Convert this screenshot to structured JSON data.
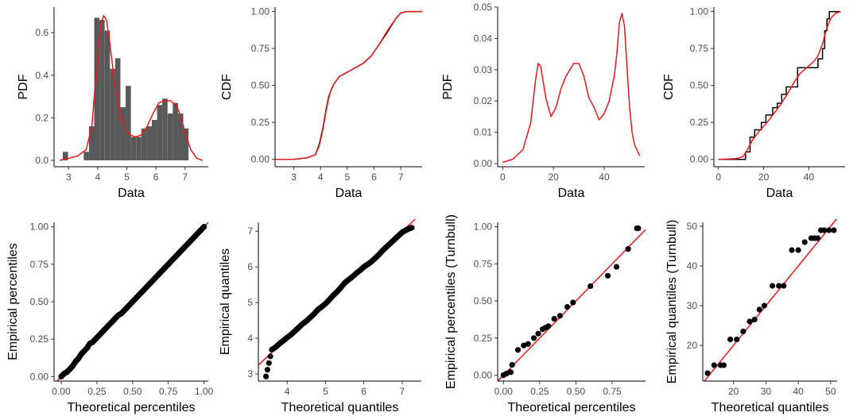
{
  "chart_data": [
    {
      "id": "p1",
      "type": "bar",
      "xlabel": "Data",
      "ylabel": "PDF",
      "xlim": [
        2.5,
        7.8
      ],
      "ylim": [
        -0.03,
        0.72
      ],
      "xticks": [
        3,
        4,
        5,
        6,
        7
      ],
      "xtick_labels": [
        "3",
        "4",
        "5",
        "6",
        "7"
      ],
      "yticks": [
        0,
        0.2,
        0.4,
        0.6
      ],
      "ytick_labels": [
        "0.0",
        "0.2",
        "0.4",
        "0.6"
      ],
      "bars": {
        "bin_edges": [
          2.8,
          2.98,
          3.16,
          3.34,
          3.52,
          3.7,
          3.88,
          4.06,
          4.24,
          4.42,
          4.6,
          4.78,
          4.96,
          5.14,
          5.32,
          5.5,
          5.68,
          5.86,
          6.04,
          6.22,
          6.4,
          6.58,
          6.76,
          6.94,
          7.12
        ],
        "values": [
          0.04,
          0.0,
          0.0,
          0.0,
          0.04,
          0.16,
          0.67,
          0.66,
          0.61,
          0.43,
          0.48,
          0.25,
          0.35,
          0.11,
          0.11,
          0.15,
          0.16,
          0.19,
          0.26,
          0.29,
          0.22,
          0.27,
          0.22,
          0.15
        ],
        "color": "#595959"
      },
      "line": {
        "color": "#e41a1c",
        "x": [
          2.7,
          3.0,
          3.3,
          3.6,
          3.8,
          3.95,
          4.1,
          4.2,
          4.3,
          4.4,
          4.55,
          4.7,
          4.9,
          5.1,
          5.3,
          5.5,
          5.7,
          5.9,
          6.1,
          6.3,
          6.5,
          6.7,
          6.85,
          7.0,
          7.2,
          7.4,
          7.6
        ],
        "y": [
          0.0,
          0.01,
          0.02,
          0.05,
          0.16,
          0.42,
          0.63,
          0.68,
          0.66,
          0.57,
          0.4,
          0.26,
          0.16,
          0.12,
          0.11,
          0.12,
          0.16,
          0.22,
          0.27,
          0.28,
          0.28,
          0.26,
          0.21,
          0.13,
          0.05,
          0.01,
          0.0
        ]
      }
    },
    {
      "id": "p2",
      "type": "line",
      "xlabel": "Data",
      "ylabel": "CDF",
      "xlim": [
        2.3,
        7.8
      ],
      "ylim": [
        -0.05,
        1.03
      ],
      "xticks": [
        3,
        4,
        5,
        6,
        7
      ],
      "xtick_labels": [
        "3",
        "4",
        "5",
        "6",
        "7"
      ],
      "yticks": [
        0,
        0.25,
        0.5,
        0.75,
        1.0
      ],
      "ytick_labels": [
        "0.00",
        "0.25",
        "0.50",
        "0.75",
        "1.00"
      ],
      "series": [
        {
          "color": "#000000",
          "x": [
            2.3,
            3.0,
            3.5,
            3.8,
            3.95,
            4.1,
            4.2,
            4.3,
            4.4,
            4.5,
            4.7,
            4.9,
            5.1,
            5.3,
            5.6,
            5.9,
            6.2,
            6.5,
            6.8,
            7.0,
            7.2,
            7.8
          ],
          "y": [
            0.0,
            0.0,
            0.01,
            0.03,
            0.1,
            0.22,
            0.33,
            0.42,
            0.47,
            0.51,
            0.56,
            0.58,
            0.6,
            0.62,
            0.65,
            0.7,
            0.78,
            0.86,
            0.95,
            0.99,
            1.0,
            1.0
          ]
        },
        {
          "color": "#e41a1c",
          "x": [
            2.3,
            3.0,
            3.5,
            3.8,
            3.95,
            4.1,
            4.2,
            4.3,
            4.4,
            4.5,
            4.7,
            4.9,
            5.1,
            5.3,
            5.6,
            5.9,
            6.2,
            6.5,
            6.8,
            7.0,
            7.2,
            7.8
          ],
          "y": [
            0.0,
            0.0,
            0.01,
            0.03,
            0.09,
            0.21,
            0.32,
            0.41,
            0.47,
            0.51,
            0.56,
            0.58,
            0.6,
            0.62,
            0.65,
            0.7,
            0.78,
            0.87,
            0.95,
            0.99,
            1.0,
            1.0
          ]
        }
      ]
    },
    {
      "id": "p3",
      "type": "line",
      "xlabel": "Data",
      "ylabel": "PDF",
      "xlim": [
        -2,
        56
      ],
      "ylim": [
        -0.001,
        0.05
      ],
      "xticks": [
        0,
        20,
        40
      ],
      "xtick_labels": [
        "0",
        "20",
        "40"
      ],
      "yticks": [
        0,
        0.01,
        0.02,
        0.03,
        0.04,
        0.05
      ],
      "ytick_labels": [
        "0.00",
        "0.01",
        "0.02",
        "0.03",
        "0.04",
        "0.05"
      ],
      "series": [
        {
          "color": "#e41a1c",
          "x": [
            0,
            4,
            8,
            11,
            13,
            14,
            15,
            17,
            19,
            21,
            23,
            25,
            28,
            30,
            32,
            34,
            36,
            38,
            40,
            42,
            44,
            45,
            46,
            47,
            48,
            49,
            50,
            51,
            52,
            54
          ],
          "y": [
            0.0004,
            0.0014,
            0.0045,
            0.013,
            0.027,
            0.032,
            0.031,
            0.021,
            0.015,
            0.018,
            0.024,
            0.028,
            0.032,
            0.032,
            0.028,
            0.021,
            0.018,
            0.014,
            0.016,
            0.02,
            0.028,
            0.035,
            0.045,
            0.048,
            0.044,
            0.031,
            0.018,
            0.01,
            0.006,
            0.0025
          ]
        }
      ]
    },
    {
      "id": "p4",
      "type": "line",
      "xlabel": "Data",
      "ylabel": "CDF",
      "xlim": [
        -2,
        56
      ],
      "ylim": [
        -0.05,
        1.03
      ],
      "xticks": [
        0,
        20,
        40
      ],
      "xtick_labels": [
        "0",
        "20",
        "40"
      ],
      "yticks": [
        0,
        0.25,
        0.5,
        0.75,
        1.0
      ],
      "ytick_labels": [
        "0.00",
        "0.25",
        "0.50",
        "0.75",
        "1.00"
      ],
      "series": [
        {
          "color": "#000000",
          "step": true,
          "x": [
            0,
            12,
            12,
            14,
            14,
            16,
            16,
            19,
            19,
            21,
            21,
            24,
            24,
            26,
            26,
            28,
            28,
            30,
            30,
            35,
            35,
            44,
            44,
            46,
            46,
            47,
            47,
            48,
            48,
            49,
            49,
            54
          ],
          "y": [
            0,
            0,
            0.05,
            0.05,
            0.15,
            0.15,
            0.2,
            0.2,
            0.25,
            0.25,
            0.3,
            0.3,
            0.35,
            0.35,
            0.38,
            0.38,
            0.44,
            0.44,
            0.49,
            0.49,
            0.62,
            0.62,
            0.68,
            0.68,
            0.75,
            0.75,
            0.87,
            0.87,
            0.95,
            0.95,
            1.0,
            1.0
          ]
        },
        {
          "color": "#e41a1c",
          "x": [
            0,
            8,
            11,
            13,
            15,
            18,
            21,
            24,
            27,
            30,
            33,
            36,
            39,
            42,
            44,
            46,
            47,
            48,
            49,
            50,
            52,
            54
          ],
          "y": [
            0.0,
            0.005,
            0.02,
            0.07,
            0.13,
            0.19,
            0.24,
            0.3,
            0.36,
            0.43,
            0.51,
            0.58,
            0.62,
            0.66,
            0.7,
            0.78,
            0.84,
            0.89,
            0.93,
            0.96,
            0.99,
            1.0
          ]
        }
      ]
    },
    {
      "id": "p5",
      "type": "scatter",
      "xlabel": "Theoretical percentiles",
      "ylabel": "Empirical percentiles",
      "xlim": [
        -0.05,
        1.03
      ],
      "ylim": [
        -0.03,
        1.03
      ],
      "xticks": [
        0,
        0.25,
        0.5,
        0.75,
        1.0
      ],
      "xtick_labels": [
        "0.00",
        "0.25",
        "0.50",
        "0.75",
        "1.00"
      ],
      "yticks": [
        0,
        0.25,
        0.5,
        0.75,
        1.0
      ],
      "ytick_labels": [
        "0.00",
        "0.25",
        "0.50",
        "0.75",
        "1.00"
      ],
      "points": {
        "color": "#000000",
        "dense": true,
        "x": [
          0.0,
          0.02,
          0.04,
          0.06,
          0.08,
          0.1,
          0.12,
          0.14,
          0.16,
          0.18,
          0.2,
          0.22,
          0.24,
          0.26,
          0.28,
          0.3,
          0.32,
          0.34,
          0.36,
          0.38,
          0.4,
          0.42,
          0.44,
          0.46,
          0.48,
          0.5,
          0.52,
          0.54,
          0.56,
          0.58,
          0.6,
          0.62,
          0.64,
          0.66,
          0.68,
          0.7,
          0.72,
          0.74,
          0.76,
          0.78,
          0.8,
          0.82,
          0.84,
          0.86,
          0.88,
          0.9,
          0.92,
          0.94,
          0.96,
          0.98,
          1.0
        ],
        "y": [
          0.0,
          0.02,
          0.03,
          0.05,
          0.07,
          0.1,
          0.12,
          0.15,
          0.17,
          0.19,
          0.22,
          0.23,
          0.25,
          0.27,
          0.29,
          0.31,
          0.33,
          0.35,
          0.37,
          0.39,
          0.41,
          0.42,
          0.44,
          0.46,
          0.48,
          0.5,
          0.52,
          0.54,
          0.56,
          0.58,
          0.6,
          0.62,
          0.64,
          0.66,
          0.68,
          0.7,
          0.72,
          0.74,
          0.76,
          0.78,
          0.8,
          0.82,
          0.84,
          0.86,
          0.88,
          0.9,
          0.92,
          0.94,
          0.96,
          0.98,
          1.0
        ]
      },
      "refline": {
        "color": "#e41a1c",
        "x": [
          -0.05,
          1.03
        ],
        "y": [
          -0.05,
          1.03
        ]
      }
    },
    {
      "id": "p6",
      "type": "scatter",
      "xlabel": "Theoretical quantiles",
      "ylabel": "Empirical quantiles",
      "xlim": [
        3.25,
        7.5
      ],
      "ylim": [
        2.8,
        7.25
      ],
      "xticks": [
        4,
        5,
        6,
        7
      ],
      "xtick_labels": [
        "4",
        "5",
        "6",
        "7"
      ],
      "yticks": [
        3,
        4,
        5,
        6,
        7
      ],
      "ytick_labels": [
        "3",
        "4",
        "5",
        "6",
        "7"
      ],
      "points": {
        "color": "#000000",
        "dense": true,
        "x": [
          3.45,
          3.6,
          3.7,
          3.8,
          3.9,
          4.0,
          4.1,
          4.2,
          4.3,
          4.4,
          4.5,
          4.6,
          4.7,
          4.8,
          4.9,
          5.0,
          5.1,
          5.2,
          5.3,
          5.4,
          5.5,
          5.6,
          5.7,
          5.8,
          5.9,
          6.0,
          6.1,
          6.2,
          6.3,
          6.4,
          6.5,
          6.6,
          6.7,
          6.8,
          6.9,
          7.0,
          7.1,
          7.2,
          7.25
        ],
        "y": [
          2.93,
          3.68,
          3.75,
          3.85,
          3.93,
          4.02,
          4.1,
          4.2,
          4.3,
          4.4,
          4.48,
          4.58,
          4.68,
          4.8,
          4.88,
          4.97,
          5.08,
          5.2,
          5.3,
          5.42,
          5.55,
          5.64,
          5.72,
          5.82,
          5.9,
          6.0,
          6.07,
          6.15,
          6.25,
          6.35,
          6.47,
          6.57,
          6.67,
          6.77,
          6.87,
          6.97,
          7.03,
          7.08,
          7.1
        ]
      },
      "refline": {
        "color": "#e41a1c",
        "x": [
          3.25,
          7.5
        ],
        "y": [
          3.25,
          7.5
        ]
      }
    },
    {
      "id": "p7",
      "type": "scatter",
      "xlabel": "Theoretical percentiles",
      "ylabel": "Empirical percentiles (Turnbull)",
      "xlim": [
        -0.04,
        0.98
      ],
      "ylim": [
        -0.04,
        1.03
      ],
      "xticks": [
        0,
        0.25,
        0.5,
        0.75
      ],
      "xtick_labels": [
        "0.00",
        "0.25",
        "0.50",
        "0.75"
      ],
      "yticks": [
        0,
        0.25,
        0.5,
        0.75,
        1.0
      ],
      "ytick_labels": [
        "0.00",
        "0.25",
        "0.50",
        "0.75",
        "1.00"
      ],
      "points": {
        "color": "#000000",
        "dense": false,
        "x": [
          0.0,
          0.02,
          0.05,
          0.06,
          0.1,
          0.14,
          0.17,
          0.21,
          0.24,
          0.27,
          0.29,
          0.31,
          0.35,
          0.39,
          0.44,
          0.48,
          0.6,
          0.72,
          0.78,
          0.86,
          0.92,
          0.93
        ],
        "y": [
          0.0,
          0.01,
          0.02,
          0.07,
          0.17,
          0.2,
          0.21,
          0.25,
          0.28,
          0.31,
          0.32,
          0.33,
          0.38,
          0.4,
          0.46,
          0.49,
          0.6,
          0.67,
          0.73,
          0.85,
          0.99,
          0.99
        ]
      },
      "refline": {
        "color": "#e41a1c",
        "x": [
          -0.04,
          0.98
        ],
        "y": [
          -0.04,
          0.98
        ]
      }
    },
    {
      "id": "p8",
      "type": "scatter",
      "xlabel": "Theoretical quantiles",
      "ylabel": "Empirical quantiles (Turnbull)",
      "xlim": [
        10.5,
        52
      ],
      "ylim": [
        11,
        51
      ],
      "xticks": [
        20,
        30,
        40,
        50
      ],
      "xtick_labels": [
        "20",
        "30",
        "40",
        "50"
      ],
      "yticks": [
        20,
        30,
        40,
        50
      ],
      "ytick_labels": [
        "20",
        "30",
        "40",
        "50"
      ],
      "points": {
        "color": "#000000",
        "dense": false,
        "x": [
          12,
          14,
          16,
          17,
          19,
          21,
          23,
          25,
          26.5,
          28,
          29.5,
          32,
          34,
          35.5,
          38,
          40,
          42,
          44,
          45,
          46,
          47,
          48,
          49.5,
          51
        ],
        "y": [
          13,
          15,
          15,
          15,
          21.5,
          21.5,
          23.5,
          26,
          26.5,
          29,
          30,
          35,
          35,
          35,
          44,
          44,
          46,
          47,
          47,
          47,
          49,
          49,
          49,
          49
        ]
      },
      "refline": {
        "color": "#e41a1c",
        "x": [
          10.5,
          52
        ],
        "y": [
          10.5,
          52
        ]
      }
    }
  ]
}
